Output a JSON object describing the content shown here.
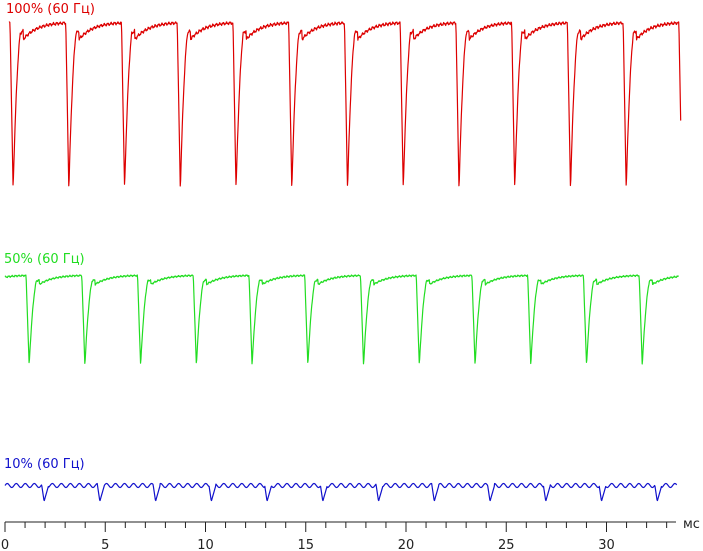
{
  "chart_data": {
    "type": "line",
    "xlabel": "мс",
    "xlim": [
      0,
      33.5
    ],
    "x_major_ticks": [
      0,
      5,
      10,
      15,
      20,
      25,
      30
    ],
    "x_minor_tick_step": 1,
    "period_ms": 2.78,
    "grid": false,
    "series": [
      {
        "name": "100% (60 Гц)",
        "color": "#dd0000",
        "start_ms": 0.2,
        "end_ms": 33.7,
        "first_dip_ms": 0.25,
        "low_value": 0.0,
        "high_value": 1.0
      },
      {
        "name": "50% (60 Гц)",
        "color": "#22dd22",
        "start_ms": 0.0,
        "end_ms": 33.6,
        "first_dip_ms": 1.05,
        "low_value": 0.0,
        "high_value": 1.0
      },
      {
        "name": "10% (60 Гц)",
        "color": "#1111cc",
        "start_ms": 0.0,
        "end_ms": 33.5,
        "first_dip_ms": 1.95,
        "low_value": 0.0,
        "high_value": 1.0
      }
    ]
  }
}
